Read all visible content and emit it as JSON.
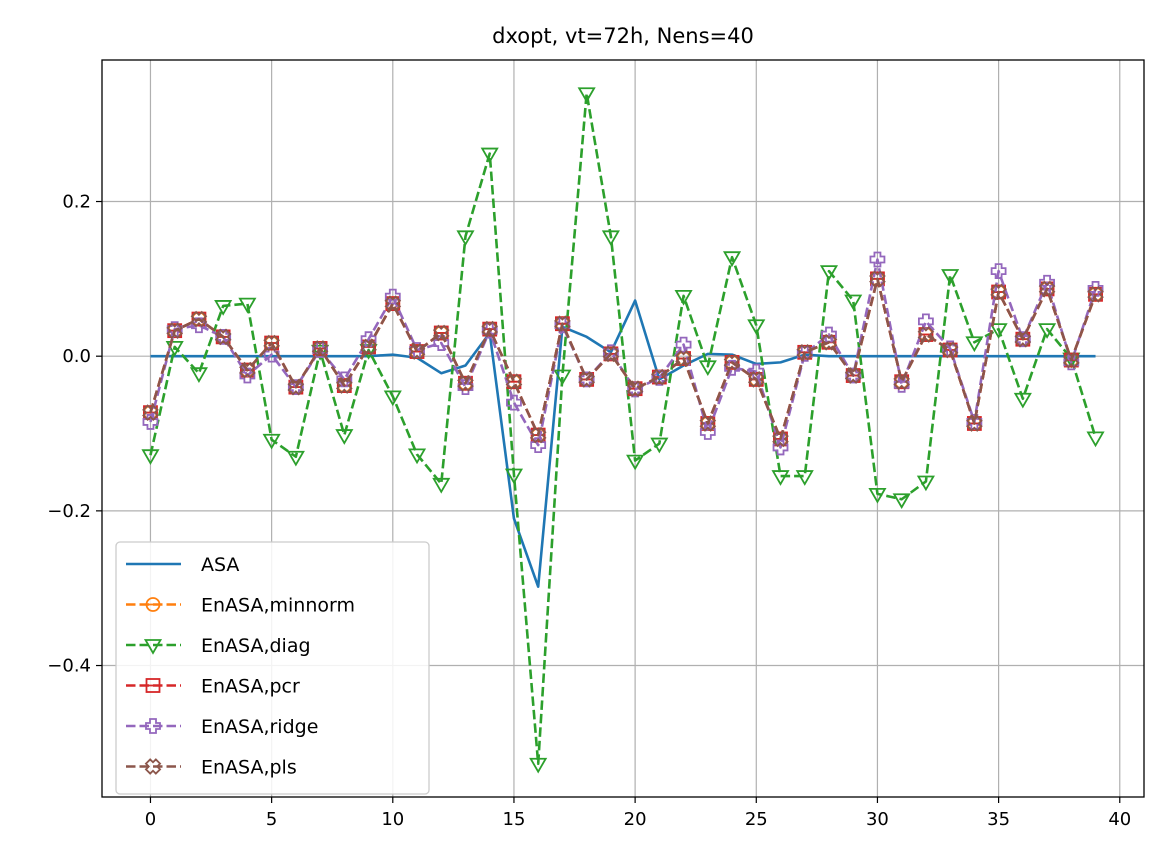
{
  "chart_data": {
    "type": "line",
    "title": "dxopt, vt=72h, Nens=40",
    "xlabel": "",
    "ylabel": "",
    "xlim": [
      -2,
      41
    ],
    "ylim": [
      -0.57,
      0.383
    ],
    "xticks": [
      0,
      5,
      10,
      15,
      20,
      25,
      30,
      35,
      40
    ],
    "xtick_labels": [
      "0",
      "5",
      "10",
      "15",
      "20",
      "25",
      "30",
      "35",
      "40"
    ],
    "yticks": [
      -0.4,
      -0.2,
      0.0,
      0.2
    ],
    "ytick_labels": [
      "−0.4",
      "−0.2",
      "0.0",
      "0.2"
    ],
    "grid": true,
    "legend_position": "lower-left",
    "x": [
      0,
      1,
      2,
      3,
      4,
      5,
      6,
      7,
      8,
      9,
      10,
      11,
      12,
      13,
      14,
      15,
      16,
      17,
      18,
      19,
      20,
      21,
      22,
      23,
      24,
      25,
      26,
      27,
      28,
      29,
      30,
      31,
      32,
      33,
      34,
      35,
      36,
      37,
      38,
      39
    ],
    "series": [
      {
        "name": "ASA",
        "color": "#1f77b4",
        "linestyle": "solid",
        "marker": "none",
        "values": [
          0,
          0,
          0,
          0,
          0,
          0,
          0,
          0,
          0,
          0,
          0.002,
          -0.002,
          -0.022,
          -0.012,
          0.03,
          -0.21,
          -0.298,
          0.038,
          0.025,
          0.005,
          0.072,
          -0.03,
          -0.012,
          0.003,
          0.002,
          -0.01,
          -0.008,
          0.002,
          0,
          0,
          0,
          0,
          0,
          0,
          0,
          0,
          0,
          0,
          0,
          0
        ]
      },
      {
        "name": "EnASA,minnorm",
        "color": "#ff7f0e",
        "linestyle": "dashed",
        "marker": "circle-line",
        "values": [
          -0.073,
          0.033,
          0.048,
          0.025,
          -0.018,
          0.017,
          -0.04,
          0.01,
          -0.038,
          0.012,
          0.068,
          0.006,
          0.03,
          -0.035,
          0.035,
          -0.033,
          -0.102,
          0.042,
          -0.03,
          0.003,
          -0.042,
          -0.027,
          -0.003,
          -0.087,
          -0.008,
          -0.03,
          -0.107,
          0.005,
          0.018,
          -0.025,
          0.1,
          -0.033,
          0.028,
          0.008,
          -0.087,
          0.083,
          0.022,
          0.087,
          -0.005,
          0.08
        ]
      },
      {
        "name": "EnASA,diag",
        "color": "#2ca02c",
        "linestyle": "dashed",
        "marker": "triangle-down",
        "values": [
          -0.128,
          0.012,
          -0.022,
          0.065,
          0.068,
          -0.108,
          -0.13,
          0.007,
          -0.102,
          0.008,
          -0.052,
          -0.127,
          -0.165,
          0.155,
          0.262,
          -0.153,
          -0.527,
          -0.025,
          0.34,
          0.155,
          -0.135,
          -0.113,
          0.078,
          -0.013,
          0.128,
          0.04,
          -0.155,
          -0.155,
          0.11,
          0.072,
          -0.178,
          -0.185,
          -0.162,
          0.105,
          0.018,
          0.035,
          -0.055,
          0.035,
          -0.003,
          -0.105
        ]
      },
      {
        "name": "EnASA,pcr",
        "color": "#d62728",
        "linestyle": "dashed",
        "marker": "square-line",
        "values": [
          -0.073,
          0.033,
          0.048,
          0.025,
          -0.018,
          0.017,
          -0.04,
          0.01,
          -0.038,
          0.012,
          0.068,
          0.006,
          0.03,
          -0.035,
          0.035,
          -0.033,
          -0.102,
          0.042,
          -0.03,
          0.003,
          -0.042,
          -0.027,
          -0.003,
          -0.087,
          -0.008,
          -0.03,
          -0.107,
          0.005,
          0.018,
          -0.025,
          0.1,
          -0.033,
          0.028,
          0.008,
          -0.087,
          0.083,
          0.022,
          0.087,
          -0.005,
          0.08
        ]
      },
      {
        "name": "EnASA,ridge",
        "color": "#9467bd",
        "linestyle": "dashed",
        "marker": "plus-filled",
        "values": [
          -0.085,
          0.035,
          0.04,
          0.025,
          -0.025,
          0.002,
          -0.04,
          0.008,
          -0.03,
          0.022,
          0.077,
          0.008,
          0.017,
          -0.04,
          0.033,
          -0.06,
          -0.115,
          0.04,
          -0.03,
          0.005,
          -0.043,
          -0.028,
          0.015,
          -0.098,
          -0.015,
          -0.02,
          -0.118,
          0.003,
          0.028,
          -0.025,
          0.125,
          -0.037,
          0.045,
          0.01,
          -0.085,
          0.11,
          0.022,
          0.095,
          -0.008,
          0.087
        ]
      },
      {
        "name": "EnASA,pls",
        "color": "#8c564b",
        "linestyle": "dashed",
        "marker": "x-filled",
        "values": [
          -0.073,
          0.033,
          0.048,
          0.025,
          -0.018,
          0.017,
          -0.04,
          0.01,
          -0.038,
          0.012,
          0.068,
          0.006,
          0.03,
          -0.035,
          0.035,
          -0.033,
          -0.102,
          0.042,
          -0.03,
          0.003,
          -0.042,
          -0.027,
          -0.003,
          -0.087,
          -0.008,
          -0.03,
          -0.107,
          0.005,
          0.018,
          -0.025,
          0.1,
          -0.033,
          0.028,
          0.008,
          -0.087,
          0.083,
          0.022,
          0.087,
          -0.005,
          0.08
        ]
      }
    ]
  }
}
